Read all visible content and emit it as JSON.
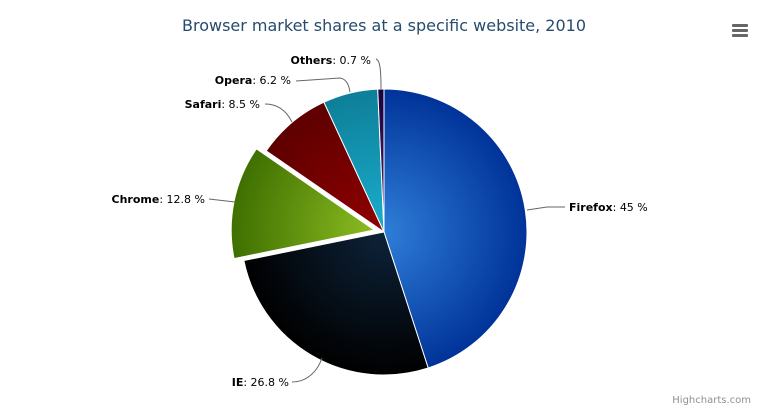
{
  "chart_data": {
    "type": "pie",
    "title": "Browser market shares at a specific website, 2010",
    "slices": [
      {
        "name": "Firefox",
        "value": 45.0,
        "label_value": "45 %",
        "color": "#2f7ed8",
        "color_dark": "#003399",
        "sliced": false
      },
      {
        "name": "IE",
        "value": 26.8,
        "label_value": "26.8 %",
        "color": "#0d233a",
        "color_dark": "#000000",
        "sliced": false
      },
      {
        "name": "Chrome",
        "value": 12.8,
        "label_value": "12.8 %",
        "color": "#8bbc21",
        "color_dark": "#3f6f00",
        "sliced": true
      },
      {
        "name": "Safari",
        "value": 8.5,
        "label_value": "8.5 %",
        "color": "#910000",
        "color_dark": "#5e0000",
        "sliced": false
      },
      {
        "name": "Opera",
        "value": 6.2,
        "label_value": "6.2 %",
        "color": "#1aadce",
        "color_dark": "#0e7f98",
        "sliced": false
      },
      {
        "name": "Others",
        "value": 0.7,
        "label_value": "0.7 %",
        "color": "#492970",
        "color_dark": "#1a0040",
        "sliced": false
      }
    ],
    "legend": "none"
  },
  "menu_icon": "hamburger-menu-icon",
  "credits": "Highcharts.com"
}
